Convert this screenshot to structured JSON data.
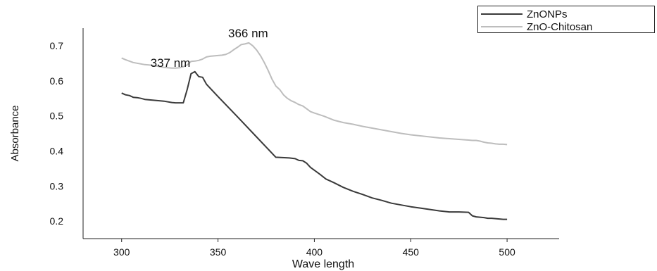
{
  "chart_data": {
    "type": "line",
    "title": "",
    "xlabel": "Wave length",
    "ylabel": "Absorbance",
    "xlim": [
      280,
      527
    ],
    "ylim": [
      0.15,
      0.75
    ],
    "xticks": [
      300,
      350,
      400,
      450,
      500
    ],
    "yticks": [
      0.2,
      0.3,
      0.4,
      0.5,
      0.6,
      0.7
    ],
    "xtick_labels": [
      "300",
      "350",
      "400",
      "450",
      "500"
    ],
    "ytick_labels": [
      "0.2",
      "0.3",
      "0.4",
      "0.5",
      "0.6",
      "0.7"
    ],
    "grid": false,
    "legend_position": "top-right",
    "series": [
      {
        "name": "ZnONPs",
        "color": "#3a3a3a",
        "x": [
          300,
          302,
          304,
          306,
          308,
          310,
          312,
          314,
          316,
          318,
          320,
          322,
          324,
          326,
          328,
          330,
          332,
          334,
          336,
          337,
          338,
          340,
          342,
          344,
          350,
          360,
          370,
          380,
          387,
          390,
          392,
          394,
          396,
          398,
          400,
          403,
          406,
          410,
          415,
          420,
          425,
          430,
          435,
          440,
          445,
          450,
          455,
          460,
          465,
          470,
          475,
          480,
          482,
          484,
          486,
          488,
          490,
          492,
          494,
          496,
          498,
          500
        ],
        "y": [
          0.565,
          0.56,
          0.558,
          0.553,
          0.552,
          0.55,
          0.547,
          0.546,
          0.545,
          0.544,
          0.543,
          0.542,
          0.54,
          0.538,
          0.537,
          0.537,
          0.537,
          0.575,
          0.62,
          0.623,
          0.626,
          0.612,
          0.61,
          0.59,
          0.555,
          0.498,
          0.44,
          0.382,
          0.38,
          0.378,
          0.373,
          0.372,
          0.365,
          0.353,
          0.345,
          0.333,
          0.32,
          0.31,
          0.296,
          0.285,
          0.276,
          0.266,
          0.259,
          0.251,
          0.246,
          0.241,
          0.237,
          0.233,
          0.229,
          0.226,
          0.226,
          0.225,
          0.215,
          0.212,
          0.211,
          0.21,
          0.208,
          0.208,
          0.207,
          0.206,
          0.205,
          0.205
        ]
      },
      {
        "name": "ZnO-Chitosan",
        "color": "#bdbdbd",
        "x": [
          300,
          302,
          304,
          306,
          308,
          310,
          312,
          314,
          316,
          318,
          320,
          322,
          324,
          326,
          328,
          330,
          332,
          334,
          336,
          338,
          340,
          342,
          344,
          346,
          348,
          350,
          352,
          354,
          356,
          358,
          360,
          362,
          364,
          366,
          368,
          370,
          372,
          374,
          376,
          378,
          380,
          382,
          384,
          386,
          388,
          390,
          392,
          394,
          396,
          398,
          400,
          405,
          410,
          415,
          420,
          425,
          430,
          435,
          440,
          445,
          450,
          455,
          460,
          465,
          470,
          475,
          480,
          482,
          484,
          486,
          488,
          490,
          492,
          494,
          496,
          498,
          500
        ],
        "y": [
          0.665,
          0.66,
          0.656,
          0.652,
          0.65,
          0.648,
          0.646,
          0.645,
          0.644,
          0.642,
          0.64,
          0.638,
          0.637,
          0.636,
          0.636,
          0.637,
          0.64,
          0.645,
          0.655,
          0.656,
          0.658,
          0.662,
          0.668,
          0.67,
          0.671,
          0.672,
          0.673,
          0.675,
          0.68,
          0.688,
          0.695,
          0.703,
          0.705,
          0.708,
          0.7,
          0.688,
          0.672,
          0.652,
          0.63,
          0.605,
          0.585,
          0.575,
          0.56,
          0.55,
          0.543,
          0.538,
          0.532,
          0.528,
          0.52,
          0.512,
          0.508,
          0.499,
          0.488,
          0.481,
          0.476,
          0.47,
          0.465,
          0.46,
          0.455,
          0.45,
          0.446,
          0.443,
          0.44,
          0.437,
          0.435,
          0.433,
          0.431,
          0.43,
          0.43,
          0.428,
          0.425,
          0.423,
          0.422,
          0.42,
          0.419,
          0.419,
          0.418
        ]
      }
    ],
    "annotations": [
      {
        "text": "337 nm",
        "x": 337,
        "y": 0.626
      },
      {
        "text": "366 nm",
        "x": 366,
        "y": 0.708
      }
    ]
  }
}
